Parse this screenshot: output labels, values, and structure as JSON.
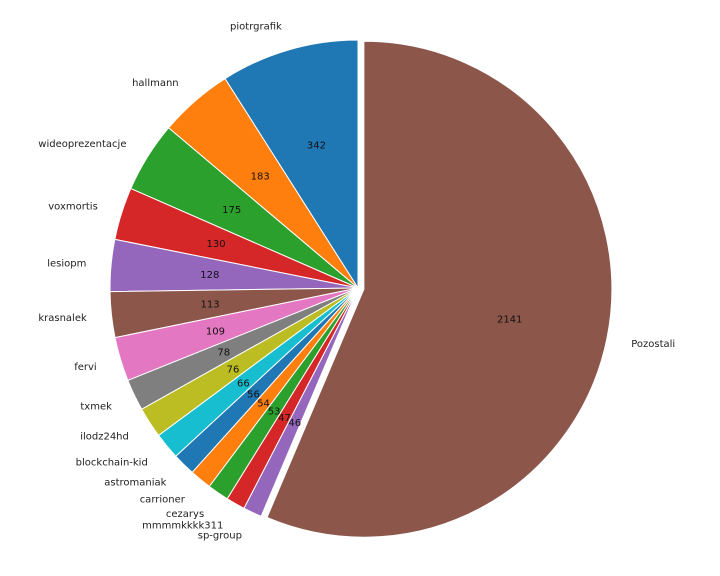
{
  "chart_data": {
    "type": "pie",
    "title": "",
    "start_angle_deg": 90,
    "direction": "counterclockwise",
    "exploded_slice": "Pozostali",
    "categories": [
      "piotrgrafik",
      "hallmann",
      "wideoprezentacje",
      "voxmortis",
      "lesiopm",
      "krasnalek",
      "fervi",
      "txmek",
      "ilodz24hd",
      "blockchain-kid",
      "astromaniak",
      "carrioner",
      "cezarys",
      "mmmmkkkk311",
      "sp-group",
      "Pozostali"
    ],
    "values": [
      342,
      183,
      175,
      130,
      128,
      113,
      109,
      78,
      76,
      66,
      56,
      54,
      53,
      47,
      46,
      2141
    ],
    "colors": [
      "#1f77b4",
      "#ff7f0e",
      "#2ca02c",
      "#d62728",
      "#9467bd",
      "#8c564b",
      "#e377c2",
      "#7f7f7f",
      "#bcbd22",
      "#17becf",
      "#1f77b4",
      "#ff7f0e",
      "#2ca02c",
      "#d62728",
      "#9467bd",
      "#8c564b"
    ]
  }
}
